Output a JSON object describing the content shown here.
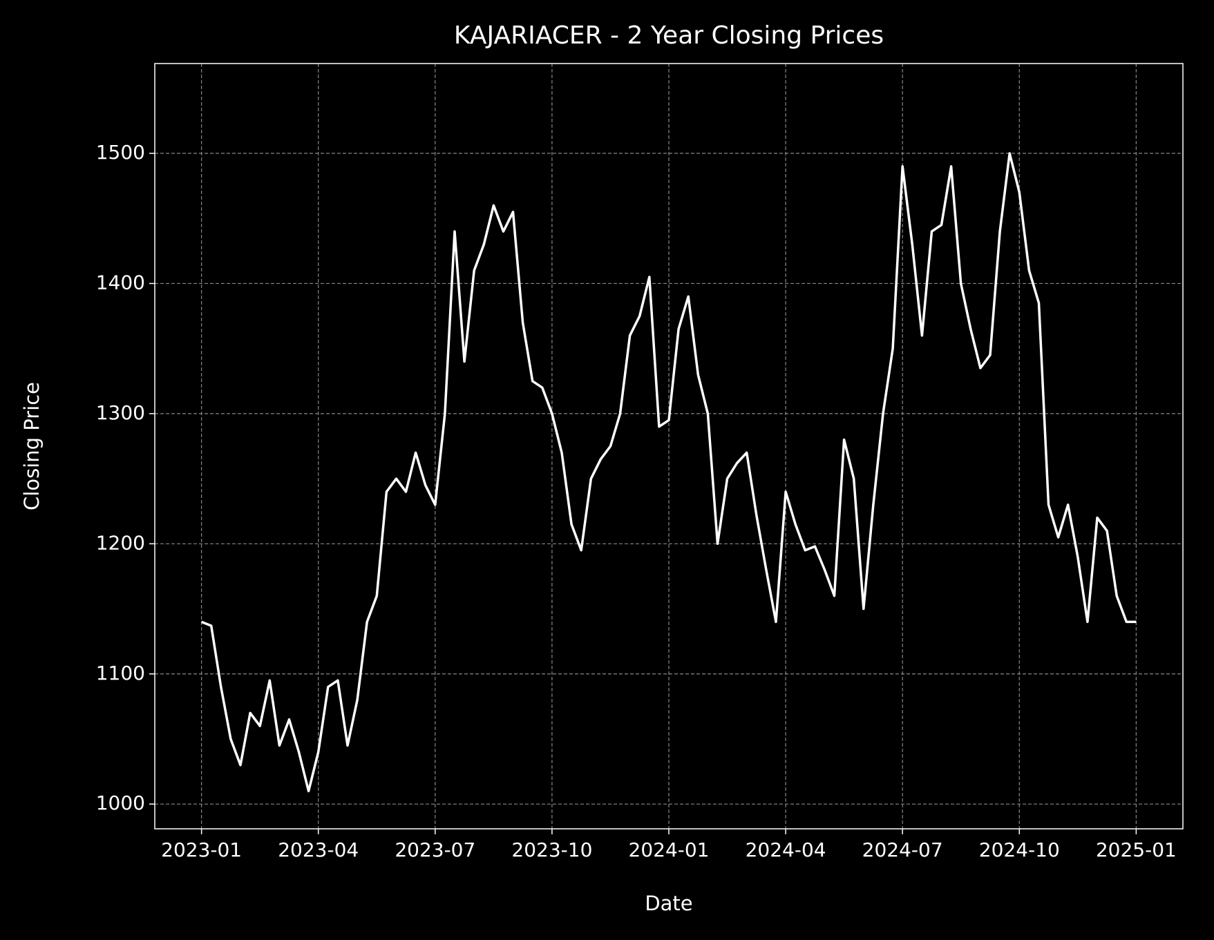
{
  "chart_data": {
    "type": "line",
    "title": "KAJARIACER - 2 Year Closing Prices",
    "x_label": "Date",
    "y_label": "Closing Price",
    "color": "#ffffff",
    "grid": true,
    "ylim": [
      981,
      1569
    ],
    "yticks": [
      1000,
      1100,
      1200,
      1300,
      1400,
      1500
    ],
    "xticks": [
      "2023-01",
      "2023-04",
      "2023-07",
      "2023-10",
      "2024-01",
      "2024-04",
      "2024-07",
      "2024-10",
      "2025-01"
    ],
    "x": [
      "2023-01",
      "2023-01",
      "2023-01",
      "2023-01",
      "2023-02",
      "2023-02",
      "2023-02",
      "2023-02",
      "2023-03",
      "2023-03",
      "2023-03",
      "2023-03",
      "2023-04",
      "2023-04",
      "2023-04",
      "2023-04",
      "2023-05",
      "2023-05",
      "2023-05",
      "2023-05",
      "2023-06",
      "2023-06",
      "2023-06",
      "2023-06",
      "2023-07",
      "2023-07",
      "2023-07",
      "2023-07",
      "2023-08",
      "2023-08",
      "2023-08",
      "2023-08",
      "2023-09",
      "2023-09",
      "2023-09",
      "2023-09",
      "2023-10",
      "2023-10",
      "2023-10",
      "2023-10",
      "2023-11",
      "2023-11",
      "2023-11",
      "2023-11",
      "2023-12",
      "2023-12",
      "2023-12",
      "2023-12",
      "2024-01",
      "2024-01",
      "2024-01",
      "2024-01",
      "2024-02",
      "2024-02",
      "2024-02",
      "2024-02",
      "2024-03",
      "2024-03",
      "2024-03",
      "2024-03",
      "2024-04",
      "2024-04",
      "2024-04",
      "2024-04",
      "2024-05",
      "2024-05",
      "2024-05",
      "2024-05",
      "2024-06",
      "2024-06",
      "2024-06",
      "2024-06",
      "2024-07",
      "2024-07",
      "2024-07",
      "2024-07",
      "2024-08",
      "2024-08",
      "2024-08",
      "2024-08",
      "2024-09",
      "2024-09",
      "2024-09",
      "2024-09",
      "2024-10",
      "2024-10",
      "2024-10",
      "2024-10",
      "2024-11",
      "2024-11",
      "2024-11",
      "2024-11",
      "2024-12",
      "2024-12",
      "2024-12",
      "2024-12",
      "2025-01"
    ],
    "values": [
      1140,
      1137,
      1090,
      1050,
      1030,
      1070,
      1060,
      1095,
      1045,
      1065,
      1040,
      1010,
      1040,
      1090,
      1095,
      1045,
      1080,
      1140,
      1160,
      1240,
      1250,
      1240,
      1270,
      1245,
      1230,
      1300,
      1440,
      1340,
      1410,
      1430,
      1460,
      1440,
      1455,
      1370,
      1325,
      1320,
      1300,
      1270,
      1215,
      1195,
      1250,
      1265,
      1275,
      1300,
      1360,
      1375,
      1405,
      1290,
      1295,
      1365,
      1390,
      1330,
      1300,
      1200,
      1250,
      1262,
      1270,
      1222,
      1180,
      1140,
      1240,
      1215,
      1195,
      1198,
      1180,
      1160,
      1280,
      1250,
      1150,
      1230,
      1300,
      1350,
      1490,
      1430,
      1360,
      1440,
      1445,
      1490,
      1400,
      1365,
      1335,
      1345,
      1440,
      1500,
      1470,
      1410,
      1385,
      1230,
      1205,
      1230,
      1190,
      1140,
      1220,
      1210,
      1160,
      1140,
      1140
    ]
  }
}
